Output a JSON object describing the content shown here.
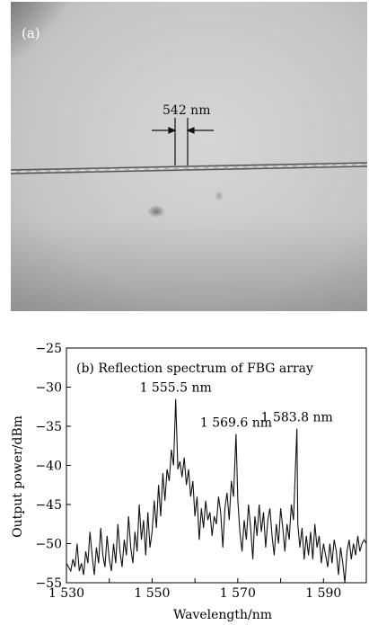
{
  "panel_a": {
    "label": "(a)",
    "scale_label": "542 nm"
  },
  "chart_data": {
    "type": "line",
    "title": "(b) Reflection spectrum of FBG array",
    "xlabel": "Wavelength/nm",
    "ylabel": "Output power/dBm",
    "xlim": [
      1530,
      1600
    ],
    "ylim": [
      -55,
      -25
    ],
    "xticks": [
      1530,
      1550,
      1570,
      1590
    ],
    "xtick_labels": [
      "1 530",
      "1 550",
      "1 570",
      "1 590"
    ],
    "yticks": [
      -25,
      -30,
      -35,
      -40,
      -45,
      -50,
      -55
    ],
    "ytick_labels": [
      "−25",
      "−30",
      "−35",
      "−40",
      "−45",
      "−50",
      "−55"
    ],
    "grid": false,
    "annotations": [
      {
        "text": "1 555.5 nm",
        "x": 1555.5,
        "y": -31.5
      },
      {
        "text": "1 569.6 nm",
        "x": 1569.6,
        "y": -36.0
      },
      {
        "text": "1 583.8 nm",
        "x": 1583.8,
        "y": -35.3
      }
    ],
    "series": [
      {
        "x": [
          1530.0,
          1530.5,
          1531.0,
          1531.5,
          1532.0,
          1532.5,
          1533.0,
          1533.5,
          1534.0,
          1534.5,
          1535.0,
          1535.5,
          1536.0,
          1536.5,
          1537.0,
          1537.5,
          1538.0,
          1538.5,
          1539.0,
          1539.5,
          1540.0,
          1540.5,
          1541.0,
          1541.5,
          1542.0,
          1542.5,
          1543.0,
          1543.5,
          1544.0,
          1544.5,
          1545.0,
          1545.5,
          1546.0,
          1546.5,
          1547.0,
          1547.5,
          1548.0,
          1548.5,
          1549.0,
          1549.5,
          1550.0,
          1550.5,
          1551.0,
          1551.5,
          1552.0,
          1552.5,
          1553.0,
          1553.5,
          1554.0,
          1554.5,
          1555.0,
          1555.5,
          1556.0,
          1556.5,
          1557.0,
          1557.5,
          1558.0,
          1558.5,
          1559.0,
          1559.5,
          1560.0,
          1560.5,
          1561.0,
          1561.5,
          1562.0,
          1562.5,
          1563.0,
          1563.5,
          1564.0,
          1564.5,
          1565.0,
          1565.5,
          1566.0,
          1566.5,
          1567.0,
          1567.5,
          1568.0,
          1568.5,
          1569.0,
          1569.6,
          1570.0,
          1570.5,
          1571.0,
          1571.5,
          1572.0,
          1572.5,
          1573.0,
          1573.5,
          1574.0,
          1574.5,
          1575.0,
          1575.5,
          1576.0,
          1576.5,
          1577.0,
          1577.5,
          1578.0,
          1578.5,
          1579.0,
          1579.5,
          1580.0,
          1580.5,
          1581.0,
          1581.5,
          1582.0,
          1582.5,
          1583.0,
          1583.8,
          1584.0,
          1584.5,
          1585.0,
          1585.5,
          1586.0,
          1586.5,
          1587.0,
          1587.5,
          1588.0,
          1588.5,
          1589.0,
          1589.5,
          1590.0,
          1590.5,
          1591.0,
          1591.5,
          1592.0,
          1592.5,
          1593.0,
          1593.5,
          1594.0,
          1594.5,
          1595.0,
          1595.5,
          1596.0,
          1596.5,
          1597.0,
          1597.5,
          1598.0,
          1598.5,
          1599.0,
          1599.5,
          1600.0
        ],
        "y": [
          -52.5,
          -53.0,
          -53.5,
          -52.0,
          -53.0,
          -50.0,
          -53.5,
          -52.5,
          -54.0,
          -51.0,
          -52.5,
          -48.5,
          -51.5,
          -54.0,
          -50.5,
          -52.5,
          -48.0,
          -51.5,
          -53.0,
          -49.0,
          -52.0,
          -53.5,
          -50.0,
          -52.5,
          -47.5,
          -51.0,
          -53.0,
          -49.5,
          -51.5,
          -46.5,
          -50.5,
          -52.5,
          -48.5,
          -51.0,
          -45.0,
          -49.5,
          -47.0,
          -51.5,
          -46.0,
          -50.5,
          -48.5,
          -44.5,
          -48.0,
          -42.5,
          -46.5,
          -41.0,
          -44.5,
          -40.5,
          -42.0,
          -38.0,
          -40.0,
          -31.5,
          -40.5,
          -39.5,
          -41.5,
          -39.0,
          -42.5,
          -40.5,
          -44.0,
          -42.0,
          -46.5,
          -44.0,
          -49.5,
          -45.5,
          -48.0,
          -44.5,
          -47.0,
          -46.0,
          -49.0,
          -46.5,
          -47.5,
          -44.0,
          -46.0,
          -50.5,
          -45.5,
          -43.5,
          -47.0,
          -42.0,
          -44.0,
          -36.0,
          -44.5,
          -48.5,
          -51.0,
          -47.0,
          -49.5,
          -45.0,
          -48.0,
          -52.0,
          -46.5,
          -49.0,
          -45.0,
          -48.5,
          -46.0,
          -50.5,
          -47.0,
          -45.5,
          -49.0,
          -51.5,
          -47.5,
          -50.0,
          -45.5,
          -48.0,
          -51.0,
          -47.5,
          -49.5,
          -45.0,
          -47.0,
          -35.3,
          -47.5,
          -50.5,
          -48.0,
          -52.0,
          -49.0,
          -51.5,
          -48.5,
          -52.0,
          -47.5,
          -50.5,
          -49.0,
          -52.5,
          -50.0,
          -51.5,
          -53.0,
          -50.0,
          -52.5,
          -49.5,
          -51.0,
          -54.0,
          -50.5,
          -52.5,
          -55.0,
          -51.0,
          -49.5,
          -52.0,
          -50.0,
          -51.5,
          -49.0,
          -51.0,
          -50.0,
          -49.5,
          -50.0
        ]
      }
    ]
  }
}
